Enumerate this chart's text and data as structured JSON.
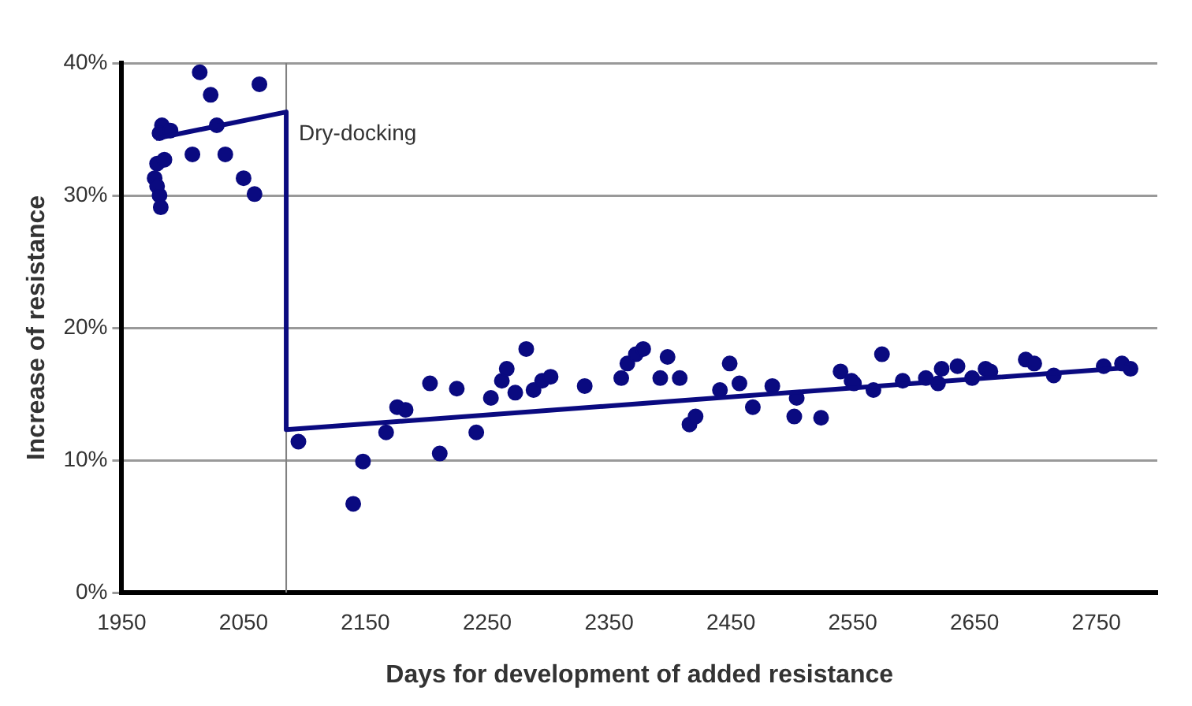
{
  "chart_data": {
    "type": "scatter",
    "xlabel": "Days for development of added resistance",
    "ylabel": "Increase of resistance",
    "xlim": [
      1950,
      2800
    ],
    "xticks": [
      1950,
      2050,
      2150,
      2250,
      2350,
      2450,
      2550,
      2650,
      2750
    ],
    "ylim": [
      0,
      40
    ],
    "yticks": [
      {
        "value": 0,
        "label": "0%"
      },
      {
        "value": 10,
        "label": "10%"
      },
      {
        "value": 20,
        "label": "20%"
      },
      {
        "value": 30,
        "label": "30%"
      },
      {
        "value": 40,
        "label": "40%"
      }
    ],
    "grid": "y",
    "legend": false,
    "marker": "circle",
    "ref_lines": [
      {
        "axis": "x",
        "value": 2085,
        "label": "Dry-docking",
        "color": "#808080"
      }
    ],
    "series": [
      {
        "color": "#0a0a80",
        "x": [
          1983,
          1981,
          1990,
          1979,
          1985,
          1977,
          1979,
          1981,
          1982,
          2008,
          2014,
          2023,
          2028,
          2035,
          2050,
          2059,
          2063,
          2095,
          2140,
          2148,
          2167,
          2176,
          2183,
          2203,
          2211,
          2225,
          2241,
          2253,
          2262,
          2266,
          2273,
          2282,
          2288,
          2295,
          2302,
          2330,
          2360,
          2365,
          2372,
          2378,
          2392,
          2398,
          2408,
          2416,
          2421,
          2441,
          2449,
          2457,
          2468,
          2484,
          2504,
          2502,
          2524,
          2540,
          2549,
          2551,
          2567,
          2574,
          2591,
          2610,
          2620,
          2623,
          2636,
          2648,
          2659,
          2663,
          2692,
          2699,
          2715,
          2756,
          2771,
          2778
        ],
        "values": [
          35.3,
          34.7,
          34.9,
          32.4,
          32.7,
          31.3,
          30.7,
          30,
          29.1,
          33.1,
          39.3,
          37.6,
          35.3,
          33.1,
          31.3,
          30.1,
          38.4,
          11.4,
          6.7,
          9.9,
          12.1,
          14,
          13.8,
          15.8,
          10.5,
          15.4,
          12.1,
          14.7,
          16,
          16.9,
          15.1,
          18.4,
          15.3,
          16,
          16.3,
          15.6,
          16.2,
          17.3,
          18,
          18.4,
          16.2,
          17.8,
          16.2,
          12.7,
          13.3,
          15.3,
          17.3,
          15.8,
          14,
          15.6,
          14.7,
          13.3,
          13.2,
          16.7,
          16,
          15.8,
          15.3,
          18,
          16,
          16.2,
          15.8,
          16.9,
          17.1,
          16.2,
          16.9,
          16.7,
          17.6,
          17.3,
          16.4,
          17.1,
          17.3,
          16.9
        ]
      },
      {
        "type": "line",
        "color": "#0a0a80",
        "marker": "none",
        "x": [
          1978,
          2085,
          2085,
          2777
        ],
        "values": [
          34.3,
          36.3,
          12.3,
          17.0
        ]
      }
    ]
  }
}
